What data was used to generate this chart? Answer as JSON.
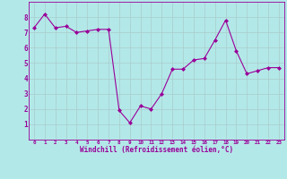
{
  "x": [
    0,
    1,
    2,
    3,
    4,
    5,
    6,
    7,
    8,
    9,
    10,
    11,
    12,
    13,
    14,
    15,
    16,
    17,
    18,
    19,
    20,
    21,
    22,
    23
  ],
  "y": [
    7.3,
    8.2,
    7.3,
    7.4,
    7.0,
    7.1,
    7.2,
    7.2,
    1.9,
    1.1,
    2.2,
    2.0,
    3.0,
    4.6,
    4.6,
    5.2,
    5.3,
    6.5,
    7.8,
    5.8,
    4.3,
    4.5,
    4.7,
    4.7
  ],
  "line_color": "#990099",
  "marker": "D",
  "marker_size": 2,
  "bg_color": "#b3e8e8",
  "grid_color": "#aacccc",
  "xlabel": "Windchill (Refroidissement éolien,°C)",
  "xlabel_color": "#990099",
  "tick_color": "#990099",
  "ylim": [
    0,
    9
  ],
  "xlim": [
    -0.5,
    23.5
  ],
  "yticks": [
    1,
    2,
    3,
    4,
    5,
    6,
    7,
    8
  ],
  "xticks": [
    0,
    1,
    2,
    3,
    4,
    5,
    6,
    7,
    8,
    9,
    10,
    11,
    12,
    13,
    14,
    15,
    16,
    17,
    18,
    19,
    20,
    21,
    22,
    23
  ],
  "xtick_labels": [
    "0",
    "1",
    "2",
    "3",
    "4",
    "5",
    "6",
    "7",
    "8",
    "9",
    "10",
    "11",
    "12",
    "13",
    "14",
    "15",
    "16",
    "17",
    "18",
    "19",
    "20",
    "21",
    "22",
    "23"
  ]
}
